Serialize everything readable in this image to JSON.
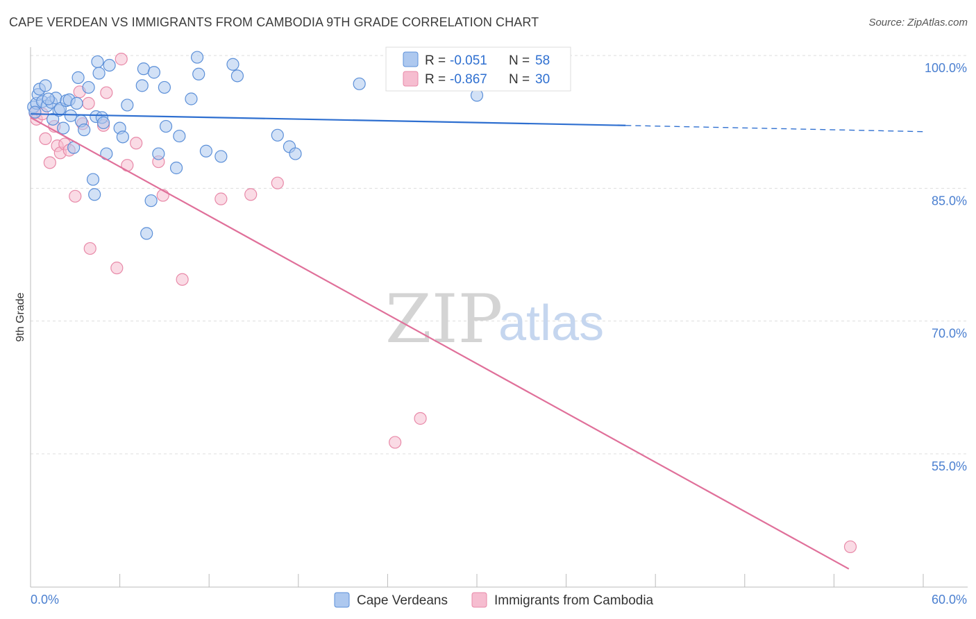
{
  "title": "CAPE VERDEAN VS IMMIGRANTS FROM CAMBODIA 9TH GRADE CORRELATION CHART",
  "source": "Source: ZipAtlas.com",
  "watermark": {
    "zip": "ZIP",
    "atlas": "atlas"
  },
  "colors": {
    "blue_fill": "#adc8ef",
    "blue_stroke": "#5b8fd8",
    "blue_line": "#2e6fd0",
    "pink_fill": "#f6bdd0",
    "pink_stroke": "#e889a8",
    "pink_line": "#e0709a",
    "axis_label": "#4a7fd0",
    "grid": "#dddddd"
  },
  "legend": {
    "rows": [
      {
        "r_label": "R =",
        "r_value": "-0.051",
        "n_label": "N =",
        "n_value": "58",
        "series": "blue"
      },
      {
        "r_label": "R =",
        "r_value": "-0.867",
        "n_label": "N =",
        "n_value": "30",
        "series": "pink"
      }
    ]
  },
  "bottom_legend": [
    "Cape Verdeans",
    "Immigrants from Cambodia"
  ],
  "chart_data": {
    "type": "scatter",
    "title": "CAPE VERDEAN VS IMMIGRANTS FROM CAMBODIA 9TH GRADE CORRELATION CHART",
    "xlabel": "",
    "ylabel": "9th Grade",
    "xlim": [
      0,
      60
    ],
    "ylim": [
      42,
      101
    ],
    "x_tick_labels": [
      "0.0%",
      "60.0%"
    ],
    "y_ticks": [
      100,
      85,
      70,
      55
    ],
    "y_tick_labels": [
      "100.0%",
      "85.0%",
      "70.0%",
      "55.0%"
    ],
    "grid": true,
    "series": [
      {
        "name": "Cape Verdeans",
        "r": -0.051,
        "n": 58,
        "trend": {
          "x0": 0,
          "y0": 93.4,
          "x1": 40,
          "y1": 92.1,
          "dash_x1": 60,
          "dash_y1": 91.4
        },
        "points": [
          [
            0.2,
            94.2
          ],
          [
            0.4,
            94.6
          ],
          [
            0.5,
            95.6
          ],
          [
            0.6,
            96.2
          ],
          [
            0.8,
            94.8
          ],
          [
            1.0,
            96.6
          ],
          [
            1.1,
            94.3
          ],
          [
            1.4,
            94.7
          ],
          [
            1.5,
            92.8
          ],
          [
            1.7,
            95.2
          ],
          [
            1.9,
            93.8
          ],
          [
            2.0,
            94.0
          ],
          [
            2.2,
            91.8
          ],
          [
            2.4,
            94.9
          ],
          [
            2.6,
            95.0
          ],
          [
            2.9,
            89.6
          ],
          [
            3.1,
            94.6
          ],
          [
            3.2,
            97.5
          ],
          [
            3.4,
            92.6
          ],
          [
            3.6,
            91.6
          ],
          [
            3.9,
            96.4
          ],
          [
            4.2,
            86.0
          ],
          [
            4.3,
            84.3
          ],
          [
            4.4,
            93.1
          ],
          [
            4.5,
            99.3
          ],
          [
            4.6,
            98.0
          ],
          [
            4.8,
            93.0
          ],
          [
            4.9,
            92.4
          ],
          [
            5.1,
            88.9
          ],
          [
            5.3,
            98.9
          ],
          [
            6.0,
            91.8
          ],
          [
            6.2,
            90.8
          ],
          [
            6.5,
            94.4
          ],
          [
            7.5,
            96.6
          ],
          [
            7.6,
            98.5
          ],
          [
            7.8,
            79.9
          ],
          [
            8.1,
            83.6
          ],
          [
            8.3,
            98.1
          ],
          [
            8.6,
            88.9
          ],
          [
            9.0,
            96.4
          ],
          [
            9.1,
            92.0
          ],
          [
            9.8,
            87.3
          ],
          [
            10.0,
            90.9
          ],
          [
            10.8,
            95.1
          ],
          [
            11.2,
            99.8
          ],
          [
            11.3,
            97.9
          ],
          [
            11.8,
            89.2
          ],
          [
            12.8,
            88.6
          ],
          [
            13.6,
            99.0
          ],
          [
            13.9,
            97.7
          ],
          [
            16.6,
            91.0
          ],
          [
            17.4,
            89.7
          ],
          [
            17.8,
            88.9
          ],
          [
            22.1,
            96.8
          ],
          [
            30.0,
            95.5
          ],
          [
            0.3,
            93.6
          ],
          [
            1.2,
            95.1
          ],
          [
            2.7,
            93.2
          ]
        ]
      },
      {
        "name": "Immigrants from Cambodia",
        "r": -0.867,
        "n": 30,
        "trend": {
          "x0": 0,
          "y0": 93.0,
          "x1": 55,
          "y1": 42.0
        },
        "points": [
          [
            0.3,
            93.5
          ],
          [
            0.4,
            92.8
          ],
          [
            0.8,
            93.4
          ],
          [
            1.0,
            90.6
          ],
          [
            1.3,
            87.9
          ],
          [
            1.6,
            92.0
          ],
          [
            1.8,
            89.8
          ],
          [
            2.0,
            89.0
          ],
          [
            2.3,
            90.0
          ],
          [
            2.6,
            89.3
          ],
          [
            3.0,
            84.1
          ],
          [
            3.3,
            95.9
          ],
          [
            3.5,
            92.3
          ],
          [
            3.9,
            94.6
          ],
          [
            4.0,
            78.2
          ],
          [
            4.9,
            92.1
          ],
          [
            5.1,
            95.8
          ],
          [
            5.8,
            76.0
          ],
          [
            6.1,
            99.6
          ],
          [
            6.5,
            87.6
          ],
          [
            7.1,
            90.1
          ],
          [
            8.6,
            88.0
          ],
          [
            8.9,
            84.2
          ],
          [
            10.2,
            74.7
          ],
          [
            12.8,
            83.8
          ],
          [
            14.8,
            84.3
          ],
          [
            16.6,
            85.6
          ],
          [
            24.5,
            56.3
          ],
          [
            26.2,
            59.0
          ],
          [
            55.1,
            44.5
          ]
        ]
      }
    ]
  }
}
